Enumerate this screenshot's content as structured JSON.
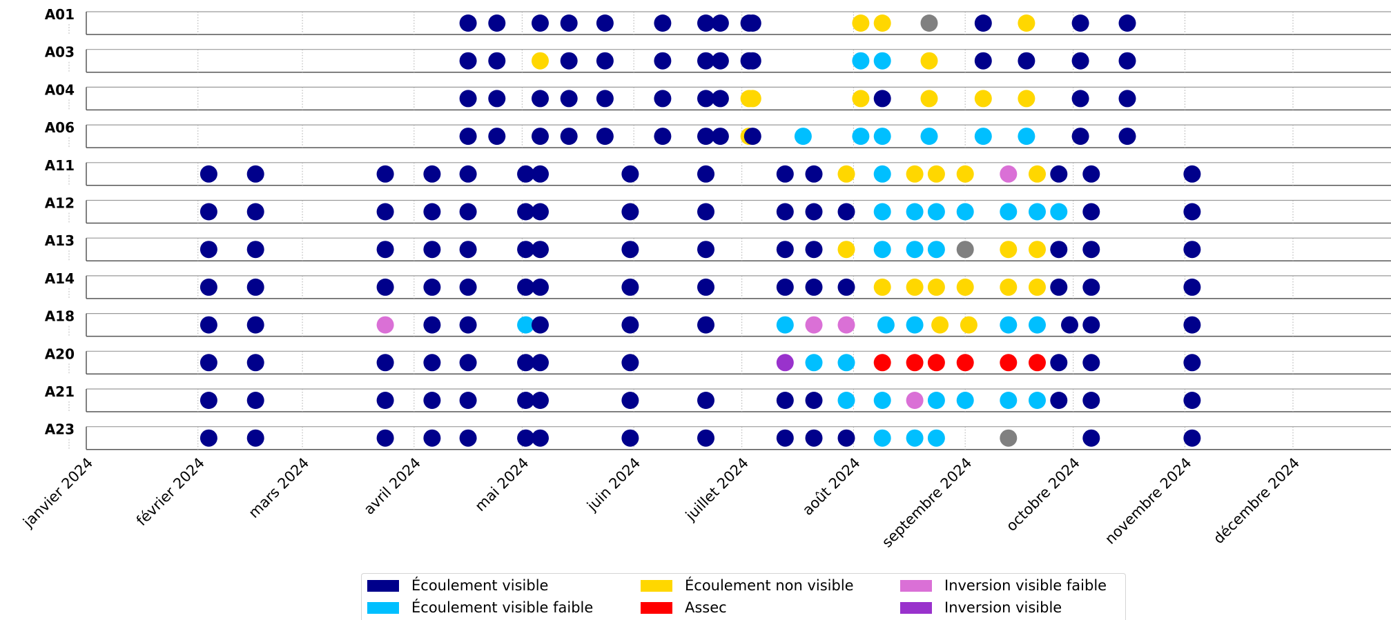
{
  "chart_data": {
    "type": "scatter",
    "title": "",
    "x_axis": {
      "type": "date",
      "range": [
        "2024-01-01",
        "2024-12-01"
      ],
      "tick_labels": [
        "janvier 2024",
        "février 2024",
        "mars 2024",
        "avril 2024",
        "mai 2024",
        "juin 2024",
        "juillet 2024",
        "août 2024",
        "septembre 2024",
        "octobre 2024",
        "novembre 2024",
        "décembre 2024"
      ],
      "tick_dates": [
        "2024-01-01",
        "2024-02-01",
        "2024-03-01",
        "2024-04-01",
        "2024-05-01",
        "2024-06-01",
        "2024-07-01",
        "2024-08-01",
        "2024-09-01",
        "2024-10-01",
        "2024-11-01",
        "2024-12-01"
      ],
      "grid": "vertical dotted"
    },
    "stations": [
      "A01",
      "A03",
      "A04",
      "A06",
      "A11",
      "A12",
      "A13",
      "A14",
      "A18",
      "A20",
      "A21",
      "A23"
    ],
    "categories": {
      "EV": {
        "label": "Écoulement visible",
        "color": "#00008b"
      },
      "EVF": {
        "label": "Écoulement visible faible",
        "color": "#00bfff"
      },
      "ENV": {
        "label": "Écoulement non visible",
        "color": "#ffd700"
      },
      "AS": {
        "label": "Assec",
        "color": "#ff0000"
      },
      "IVF": {
        "label": "Inversion visible faible",
        "color": "#da70d6"
      },
      "IV": {
        "label": "Inversion visible",
        "color": "#9932cc"
      },
      "ND": {
        "label": "",
        "color": "#808080"
      }
    },
    "legend": {
      "position": "bottom-center",
      "columns": [
        [
          "EV",
          "EVF"
        ],
        [
          "ENV",
          "AS"
        ],
        [
          "IVF",
          "IV"
        ]
      ]
    },
    "series": [
      {
        "station": "A01",
        "points": [
          [
            "2024-04-16",
            "EV"
          ],
          [
            "2024-04-24",
            "EV"
          ],
          [
            "2024-05-06",
            "EV"
          ],
          [
            "2024-05-14",
            "EV"
          ],
          [
            "2024-05-24",
            "EV"
          ],
          [
            "2024-06-09",
            "EV"
          ],
          [
            "2024-06-21",
            "EV"
          ],
          [
            "2024-06-25",
            "EV"
          ],
          [
            "2024-07-03",
            "EV"
          ],
          [
            "2024-07-04",
            "EV"
          ],
          [
            "2024-08-03",
            "ENV"
          ],
          [
            "2024-08-09",
            "ENV"
          ],
          [
            "2024-08-22",
            "ND"
          ],
          [
            "2024-09-06",
            "EV"
          ],
          [
            "2024-09-18",
            "ENV"
          ],
          [
            "2024-10-03",
            "EV"
          ],
          [
            "2024-10-16",
            "EV"
          ]
        ]
      },
      {
        "station": "A03",
        "points": [
          [
            "2024-04-16",
            "EV"
          ],
          [
            "2024-04-24",
            "EV"
          ],
          [
            "2024-05-06",
            "ENV"
          ],
          [
            "2024-05-14",
            "EV"
          ],
          [
            "2024-05-24",
            "EV"
          ],
          [
            "2024-06-09",
            "EV"
          ],
          [
            "2024-06-21",
            "EV"
          ],
          [
            "2024-06-25",
            "EV"
          ],
          [
            "2024-07-03",
            "EV"
          ],
          [
            "2024-07-04",
            "EV"
          ],
          [
            "2024-08-03",
            "EVF"
          ],
          [
            "2024-08-09",
            "EVF"
          ],
          [
            "2024-08-22",
            "ENV"
          ],
          [
            "2024-09-06",
            "EV"
          ],
          [
            "2024-09-18",
            "EV"
          ],
          [
            "2024-10-03",
            "EV"
          ],
          [
            "2024-10-16",
            "EV"
          ]
        ]
      },
      {
        "station": "A04",
        "points": [
          [
            "2024-04-16",
            "EV"
          ],
          [
            "2024-04-24",
            "EV"
          ],
          [
            "2024-05-06",
            "EV"
          ],
          [
            "2024-05-14",
            "EV"
          ],
          [
            "2024-05-24",
            "EV"
          ],
          [
            "2024-06-09",
            "EV"
          ],
          [
            "2024-06-21",
            "EV"
          ],
          [
            "2024-06-25",
            "EV"
          ],
          [
            "2024-07-03",
            "ENV"
          ],
          [
            "2024-07-04",
            "ENV"
          ],
          [
            "2024-08-03",
            "ENV"
          ],
          [
            "2024-08-09",
            "EV"
          ],
          [
            "2024-08-22",
            "ENV"
          ],
          [
            "2024-09-06",
            "ENV"
          ],
          [
            "2024-09-18",
            "ENV"
          ],
          [
            "2024-10-03",
            "EV"
          ],
          [
            "2024-10-16",
            "EV"
          ]
        ]
      },
      {
        "station": "A06",
        "points": [
          [
            "2024-04-16",
            "EV"
          ],
          [
            "2024-04-24",
            "EV"
          ],
          [
            "2024-05-06",
            "EV"
          ],
          [
            "2024-05-14",
            "EV"
          ],
          [
            "2024-05-24",
            "EV"
          ],
          [
            "2024-06-09",
            "EV"
          ],
          [
            "2024-06-21",
            "EV"
          ],
          [
            "2024-06-25",
            "EV"
          ],
          [
            "2024-07-03",
            "ENV"
          ],
          [
            "2024-07-04",
            "EV"
          ],
          [
            "2024-07-18",
            "EVF"
          ],
          [
            "2024-08-03",
            "EVF"
          ],
          [
            "2024-08-09",
            "EVF"
          ],
          [
            "2024-08-22",
            "EVF"
          ],
          [
            "2024-09-06",
            "EVF"
          ],
          [
            "2024-09-18",
            "EVF"
          ],
          [
            "2024-10-03",
            "EV"
          ],
          [
            "2024-10-16",
            "EV"
          ]
        ]
      },
      {
        "station": "A11",
        "points": [
          [
            "2024-02-04",
            "EV"
          ],
          [
            "2024-02-17",
            "EV"
          ],
          [
            "2024-03-24",
            "EV"
          ],
          [
            "2024-04-06",
            "EV"
          ],
          [
            "2024-04-16",
            "EV"
          ],
          [
            "2024-05-02",
            "EV"
          ],
          [
            "2024-05-06",
            "EV"
          ],
          [
            "2024-05-31",
            "EV"
          ],
          [
            "2024-06-21",
            "EV"
          ],
          [
            "2024-07-13",
            "EV"
          ],
          [
            "2024-07-21",
            "EV"
          ],
          [
            "2024-07-30",
            "ENV"
          ],
          [
            "2024-08-09",
            "EVF"
          ],
          [
            "2024-08-18",
            "ENV"
          ],
          [
            "2024-08-24",
            "ENV"
          ],
          [
            "2024-09-01",
            "ENV"
          ],
          [
            "2024-09-13",
            "IVF"
          ],
          [
            "2024-09-21",
            "ENV"
          ],
          [
            "2024-09-27",
            "EV"
          ],
          [
            "2024-10-06",
            "EV"
          ],
          [
            "2024-11-03",
            "EV"
          ]
        ]
      },
      {
        "station": "A12",
        "points": [
          [
            "2024-02-04",
            "EV"
          ],
          [
            "2024-02-17",
            "EV"
          ],
          [
            "2024-03-24",
            "EV"
          ],
          [
            "2024-04-06",
            "EV"
          ],
          [
            "2024-04-16",
            "EV"
          ],
          [
            "2024-05-02",
            "EV"
          ],
          [
            "2024-05-06",
            "EV"
          ],
          [
            "2024-05-31",
            "EV"
          ],
          [
            "2024-06-21",
            "EV"
          ],
          [
            "2024-07-13",
            "EV"
          ],
          [
            "2024-07-21",
            "EV"
          ],
          [
            "2024-07-30",
            "EV"
          ],
          [
            "2024-08-09",
            "EVF"
          ],
          [
            "2024-08-18",
            "EVF"
          ],
          [
            "2024-08-24",
            "EVF"
          ],
          [
            "2024-09-01",
            "EVF"
          ],
          [
            "2024-09-13",
            "EVF"
          ],
          [
            "2024-09-21",
            "EVF"
          ],
          [
            "2024-09-27",
            "EVF"
          ],
          [
            "2024-10-06",
            "EV"
          ],
          [
            "2024-11-03",
            "EV"
          ]
        ]
      },
      {
        "station": "A13",
        "points": [
          [
            "2024-02-04",
            "EV"
          ],
          [
            "2024-02-17",
            "EV"
          ],
          [
            "2024-03-24",
            "EV"
          ],
          [
            "2024-04-06",
            "EV"
          ],
          [
            "2024-04-16",
            "EV"
          ],
          [
            "2024-05-02",
            "EV"
          ],
          [
            "2024-05-06",
            "EV"
          ],
          [
            "2024-05-31",
            "EV"
          ],
          [
            "2024-06-21",
            "EV"
          ],
          [
            "2024-07-13",
            "EV"
          ],
          [
            "2024-07-21",
            "EV"
          ],
          [
            "2024-07-30",
            "ENV"
          ],
          [
            "2024-08-09",
            "EVF"
          ],
          [
            "2024-08-18",
            "EVF"
          ],
          [
            "2024-08-24",
            "EVF"
          ],
          [
            "2024-09-01",
            "ND"
          ],
          [
            "2024-09-13",
            "ENV"
          ],
          [
            "2024-09-21",
            "ENV"
          ],
          [
            "2024-09-27",
            "EV"
          ],
          [
            "2024-10-06",
            "EV"
          ],
          [
            "2024-11-03",
            "EV"
          ]
        ]
      },
      {
        "station": "A14",
        "points": [
          [
            "2024-02-04",
            "EV"
          ],
          [
            "2024-02-17",
            "EV"
          ],
          [
            "2024-03-24",
            "EV"
          ],
          [
            "2024-04-06",
            "EV"
          ],
          [
            "2024-04-16",
            "EV"
          ],
          [
            "2024-05-02",
            "EV"
          ],
          [
            "2024-05-06",
            "EV"
          ],
          [
            "2024-05-31",
            "EV"
          ],
          [
            "2024-06-21",
            "EV"
          ],
          [
            "2024-07-13",
            "EV"
          ],
          [
            "2024-07-21",
            "EV"
          ],
          [
            "2024-07-30",
            "EV"
          ],
          [
            "2024-08-09",
            "ENV"
          ],
          [
            "2024-08-18",
            "ENV"
          ],
          [
            "2024-08-24",
            "ENV"
          ],
          [
            "2024-09-01",
            "ENV"
          ],
          [
            "2024-09-13",
            "ENV"
          ],
          [
            "2024-09-21",
            "ENV"
          ],
          [
            "2024-09-27",
            "EV"
          ],
          [
            "2024-10-06",
            "EV"
          ],
          [
            "2024-11-03",
            "EV"
          ]
        ]
      },
      {
        "station": "A18",
        "points": [
          [
            "2024-02-04",
            "EV"
          ],
          [
            "2024-02-17",
            "EV"
          ],
          [
            "2024-03-24",
            "IVF"
          ],
          [
            "2024-04-06",
            "EV"
          ],
          [
            "2024-04-16",
            "EV"
          ],
          [
            "2024-05-02",
            "EVF"
          ],
          [
            "2024-05-06",
            "EV"
          ],
          [
            "2024-05-31",
            "EV"
          ],
          [
            "2024-06-21",
            "EV"
          ],
          [
            "2024-07-13",
            "EVF"
          ],
          [
            "2024-07-21",
            "IVF"
          ],
          [
            "2024-07-30",
            "IVF"
          ],
          [
            "2024-08-10",
            "EVF"
          ],
          [
            "2024-08-18",
            "EVF"
          ],
          [
            "2024-08-25",
            "ENV"
          ],
          [
            "2024-09-02",
            "ENV"
          ],
          [
            "2024-09-13",
            "EVF"
          ],
          [
            "2024-09-21",
            "EVF"
          ],
          [
            "2024-09-30",
            "EV"
          ],
          [
            "2024-10-06",
            "EV"
          ],
          [
            "2024-11-03",
            "EV"
          ]
        ]
      },
      {
        "station": "A20",
        "points": [
          [
            "2024-02-04",
            "EV"
          ],
          [
            "2024-02-17",
            "EV"
          ],
          [
            "2024-03-24",
            "EV"
          ],
          [
            "2024-04-06",
            "EV"
          ],
          [
            "2024-04-16",
            "EV"
          ],
          [
            "2024-05-02",
            "EV"
          ],
          [
            "2024-05-06",
            "EV"
          ],
          [
            "2024-05-31",
            "EV"
          ],
          [
            "2024-07-13",
            "IV"
          ],
          [
            "2024-07-21",
            "EVF"
          ],
          [
            "2024-07-30",
            "EVF"
          ],
          [
            "2024-08-09",
            "AS"
          ],
          [
            "2024-08-18",
            "AS"
          ],
          [
            "2024-08-24",
            "AS"
          ],
          [
            "2024-09-01",
            "AS"
          ],
          [
            "2024-09-13",
            "AS"
          ],
          [
            "2024-09-21",
            "AS"
          ],
          [
            "2024-09-27",
            "EV"
          ],
          [
            "2024-10-06",
            "EV"
          ],
          [
            "2024-11-03",
            "EV"
          ]
        ]
      },
      {
        "station": "A21",
        "points": [
          [
            "2024-02-04",
            "EV"
          ],
          [
            "2024-02-17",
            "EV"
          ],
          [
            "2024-03-24",
            "EV"
          ],
          [
            "2024-04-06",
            "EV"
          ],
          [
            "2024-04-16",
            "EV"
          ],
          [
            "2024-05-02",
            "EV"
          ],
          [
            "2024-05-06",
            "EV"
          ],
          [
            "2024-05-31",
            "EV"
          ],
          [
            "2024-06-21",
            "EV"
          ],
          [
            "2024-07-13",
            "EV"
          ],
          [
            "2024-07-21",
            "EV"
          ],
          [
            "2024-07-30",
            "EVF"
          ],
          [
            "2024-08-09",
            "EVF"
          ],
          [
            "2024-08-18",
            "IVF"
          ],
          [
            "2024-08-24",
            "EVF"
          ],
          [
            "2024-09-01",
            "EVF"
          ],
          [
            "2024-09-13",
            "EVF"
          ],
          [
            "2024-09-21",
            "EVF"
          ],
          [
            "2024-09-27",
            "EV"
          ],
          [
            "2024-10-06",
            "EV"
          ],
          [
            "2024-11-03",
            "EV"
          ]
        ]
      },
      {
        "station": "A23",
        "points": [
          [
            "2024-02-04",
            "EV"
          ],
          [
            "2024-02-17",
            "EV"
          ],
          [
            "2024-03-24",
            "EV"
          ],
          [
            "2024-04-06",
            "EV"
          ],
          [
            "2024-04-16",
            "EV"
          ],
          [
            "2024-05-02",
            "EV"
          ],
          [
            "2024-05-06",
            "EV"
          ],
          [
            "2024-05-31",
            "EV"
          ],
          [
            "2024-06-21",
            "EV"
          ],
          [
            "2024-07-13",
            "EV"
          ],
          [
            "2024-07-21",
            "EV"
          ],
          [
            "2024-07-30",
            "EV"
          ],
          [
            "2024-08-09",
            "EVF"
          ],
          [
            "2024-08-18",
            "EVF"
          ],
          [
            "2024-08-24",
            "EVF"
          ],
          [
            "2024-09-13",
            "ND"
          ],
          [
            "2024-10-06",
            "EV"
          ],
          [
            "2024-11-03",
            "EV"
          ]
        ]
      }
    ]
  }
}
